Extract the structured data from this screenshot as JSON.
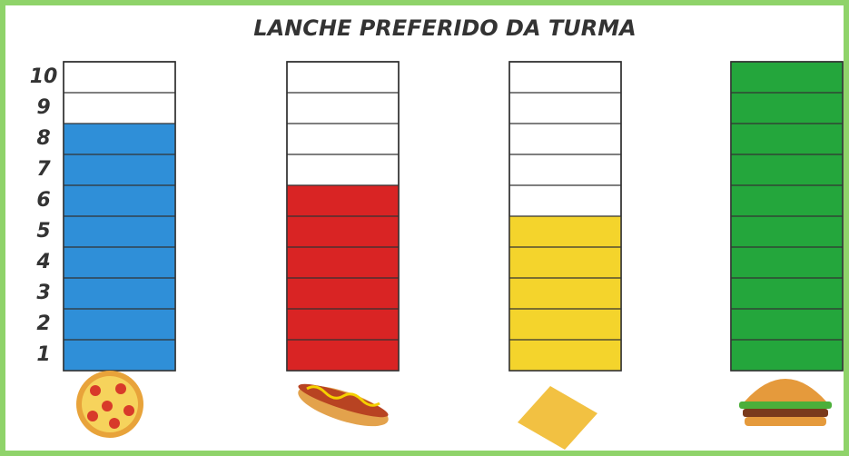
{
  "chart_data": {
    "type": "bar",
    "title": "LANCHE PREFERIDO DA TURMA",
    "categories": [
      null,
      null,
      null,
      null
    ],
    "values": [
      8,
      6,
      5,
      10
    ],
    "colors": [
      "#2f8fd8",
      "#d92424",
      "#f4d42c",
      "#24a63c"
    ],
    "ylim": [
      0,
      10
    ],
    "yticks": [
      1,
      2,
      3,
      4,
      5,
      6,
      7,
      8,
      9,
      10
    ],
    "grid": true
  }
}
